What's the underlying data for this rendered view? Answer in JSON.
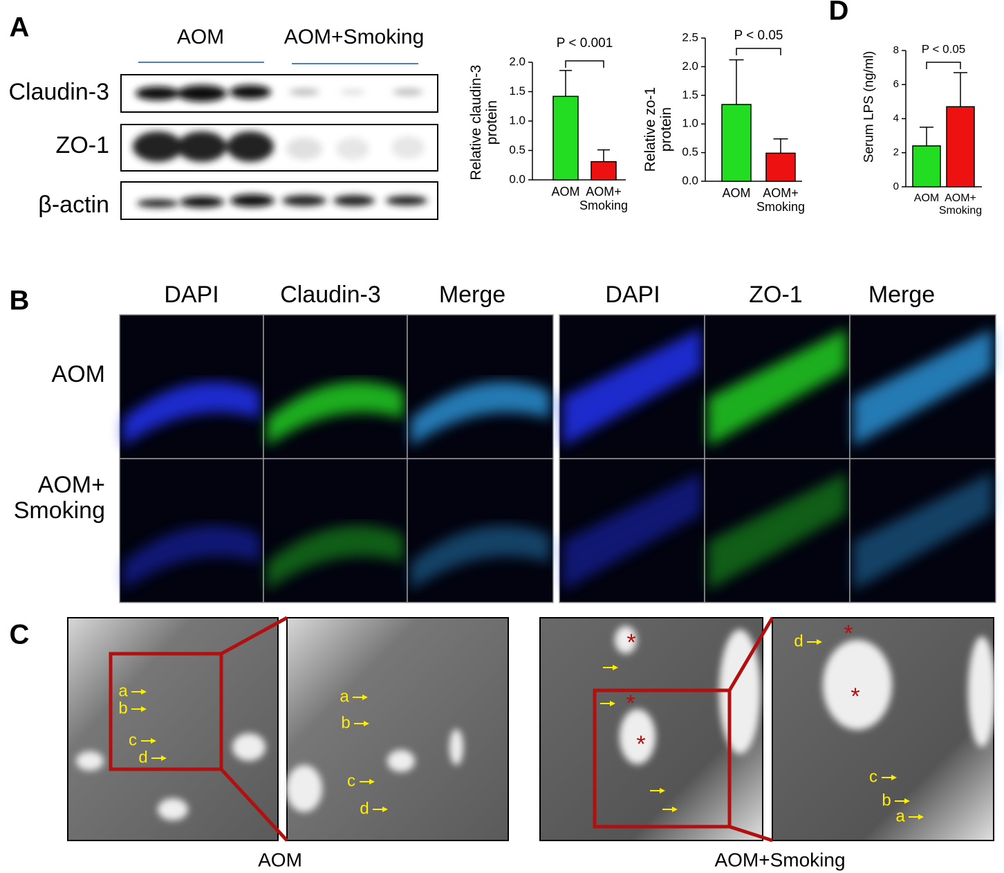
{
  "panel_labels": [
    "A",
    "B",
    "C",
    "D"
  ],
  "blot": {
    "groups": [
      "AOM",
      "AOM+Smoking"
    ],
    "rows": [
      "Claudin-3",
      "ZO-1",
      "β-actin"
    ]
  },
  "chart_data": [
    {
      "type": "bar",
      "y_label": "Relative claudin-3\nprotein",
      "annotation": "P < 0.001",
      "categories": [
        "AOM",
        "AOM+\nSmoking"
      ],
      "values": [
        1.42,
        0.31
      ],
      "errors": [
        0.44,
        0.2
      ],
      "colors": [
        "#22dd22",
        "#ee1111"
      ],
      "ylim": [
        0,
        2
      ],
      "yticks": [
        {
          "value": 0,
          "label": "0.0"
        },
        0.5,
        {
          "value": 1,
          "label": "1.0"
        },
        1.5,
        {
          "value": 2,
          "label": "2.0"
        }
      ]
    },
    {
      "type": "bar",
      "y_label": "Relative zo-1\nprotein",
      "annotation": "P < 0.05",
      "categories": [
        "AOM",
        "AOM+\nSmoking"
      ],
      "values": [
        1.34,
        0.49
      ],
      "errors": [
        0.78,
        0.25
      ],
      "colors": [
        "#22dd22",
        "#ee1111"
      ],
      "ylim": [
        0,
        2.5
      ],
      "yticks": [
        {
          "value": 0,
          "label": "0.0"
        },
        0.5,
        {
          "value": 1,
          "label": "1.0"
        },
        1.5,
        {
          "value": 2,
          "label": "2.0"
        },
        2.5
      ]
    },
    {
      "type": "bar",
      "y_label": "Serum LPS (ng/ml)",
      "annotation": "P < 0.05",
      "categories": [
        "AOM",
        "AOM+\nSmoking"
      ],
      "values": [
        2.4,
        4.7
      ],
      "errors": [
        1.1,
        2.0
      ],
      "colors": [
        "#22dd22",
        "#ee1111"
      ],
      "ylim": [
        0,
        8
      ],
      "yticks": [
        0,
        2,
        4,
        6,
        8
      ]
    }
  ],
  "if": {
    "columns": [
      "DAPI",
      "Claudin-3",
      "Merge",
      "DAPI",
      "ZO-1",
      "Merge"
    ],
    "rows": [
      "AOM",
      "AOM+\nSmoking"
    ]
  },
  "em": {
    "captions": [
      "AOM",
      "AOM+Smoking"
    ],
    "images": [
      [
        "a",
        "b",
        "c",
        "d"
      ],
      [
        "a",
        "b",
        "c",
        "d"
      ],
      [
        "*",
        "*",
        "*"
      ],
      [
        "d",
        "*",
        "*",
        "c",
        "b",
        "a"
      ]
    ]
  }
}
